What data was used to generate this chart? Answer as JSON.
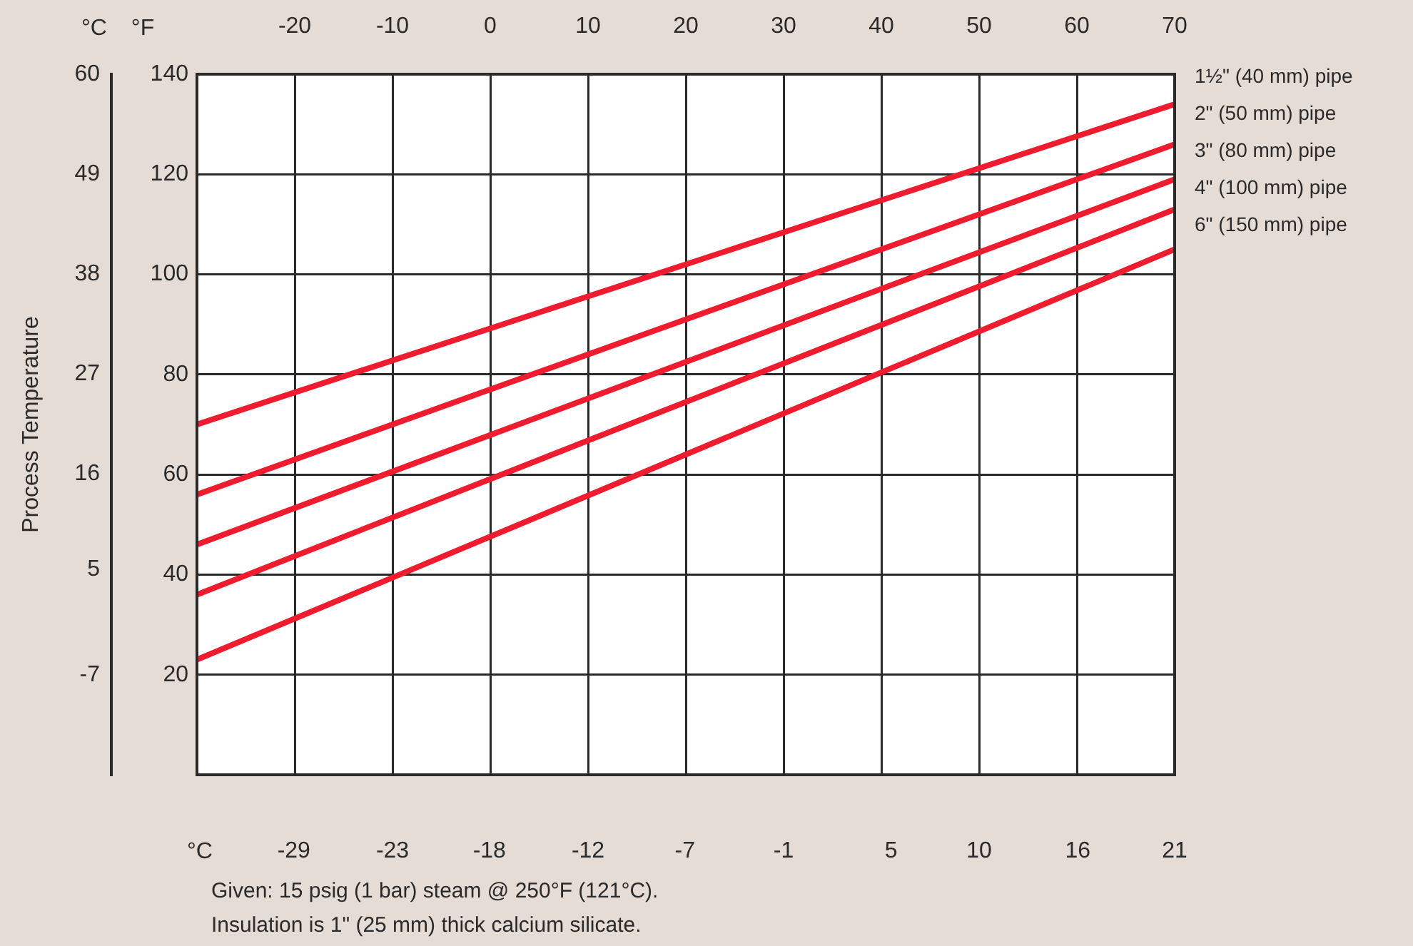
{
  "chart_data": {
    "type": "line",
    "ylabel": "Process Temperature",
    "y2label": "°F",
    "xlabel": "°C",
    "x": [
      -34.4,
      21.1
    ],
    "xlim": [
      -34.4,
      21.1
    ],
    "xticks": [
      {
        "value": -28.9,
        "label": "-29"
      },
      {
        "value": -23.3,
        "label": "-23"
      },
      {
        "value": -17.8,
        "label": "-18"
      },
      {
        "value": -12.2,
        "label": "-12"
      },
      {
        "value": -6.7,
        "label": "-7"
      },
      {
        "value": -1.1,
        "label": "-1"
      },
      5,
      10,
      {
        "value": 15.6,
        "label": "16"
      },
      {
        "value": 21.1,
        "label": "21"
      }
    ],
    "x2lim": [
      -30,
      70
    ],
    "x2ticks": [
      -20,
      -10,
      0,
      10,
      20,
      30,
      40,
      50,
      60,
      70
    ],
    "y2lim": [
      0,
      140
    ],
    "y2ticks": [
      20,
      40,
      60,
      80,
      100,
      120,
      140
    ],
    "ylim": [
      -17.8,
      60
    ],
    "yticks": [
      {
        "value": -6.7,
        "label": "-7"
      },
      5,
      {
        "value": 15.6,
        "label": "16"
      },
      {
        "value": 26.7,
        "label": "27"
      },
      {
        "value": 37.8,
        "label": "38"
      },
      {
        "value": 48.9,
        "label": "49"
      },
      60
    ],
    "grid": true,
    "marker": "none",
    "line_style": "solid",
    "series": [
      {
        "name": "1½\" (40 mm) pipe",
        "color": "#ee1c2e",
        "axis": "y2",
        "values": [
          70,
          134
        ]
      },
      {
        "name": "2\" (50 mm) pipe",
        "color": "#ee1c2e",
        "axis": "y2",
        "values": [
          56,
          126
        ]
      },
      {
        "name": "3\" (80 mm) pipe",
        "color": "#ee1c2e",
        "axis": "y2",
        "values": [
          46,
          119
        ]
      },
      {
        "name": "4\" (100 mm) pipe",
        "color": "#ee1c2e",
        "axis": "y2",
        "values": [
          36,
          113
        ]
      },
      {
        "name": "6\" (150 mm) pipe",
        "color": "#ee1c2e",
        "axis": "y2",
        "values": [
          23,
          105
        ]
      }
    ],
    "annotations": [
      "°C",
      "Given: 15 psig (1 bar) steam @ 250°F (121°C).",
      "Insulation is 1\" (25 mm) thick calcium silicate."
    ]
  }
}
